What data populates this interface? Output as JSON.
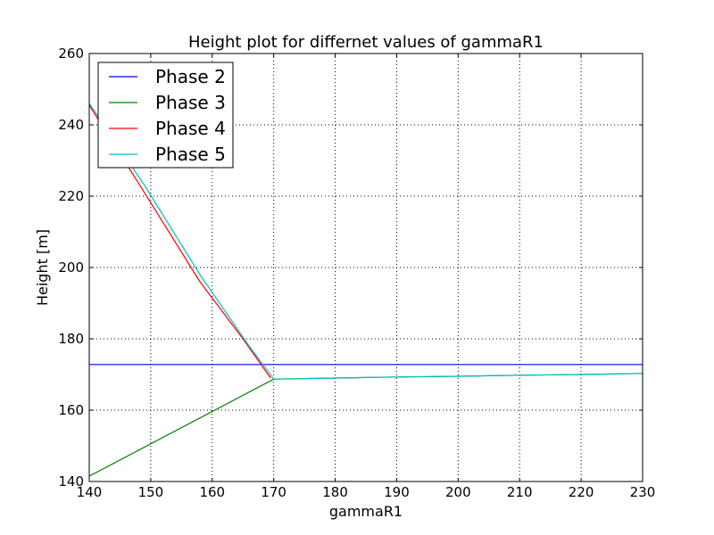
{
  "chart_data": {
    "type": "line",
    "title": "Height plot for differnet values of gammaR1",
    "xlabel": "gammaR1",
    "ylabel": "Height [m]",
    "xlim": [
      140,
      230
    ],
    "ylim": [
      140,
      260
    ],
    "xticks": [
      140,
      150,
      160,
      170,
      180,
      190,
      200,
      210,
      220,
      230
    ],
    "yticks": [
      140,
      160,
      180,
      200,
      220,
      240,
      260
    ],
    "grid": true,
    "legend_position": "top-left",
    "series": [
      {
        "name": "Phase 2",
        "color": "#0000ff",
        "x": [
          140,
          230
        ],
        "y": [
          172.8,
          172.8
        ]
      },
      {
        "name": "Phase 3",
        "color": "#008000",
        "x": [
          140,
          170,
          180,
          190,
          200,
          210,
          220,
          230
        ],
        "y": [
          141.5,
          168.7,
          169.0,
          169.3,
          169.5,
          169.8,
          170.0,
          170.3
        ]
      },
      {
        "name": "Phase 4",
        "color": "#ff0000",
        "x": [
          140,
          148.5,
          158,
          165,
          169.5
        ],
        "y": [
          245.5,
          222.3,
          196.0,
          180.0,
          169.0
        ]
      },
      {
        "name": "Phase 5",
        "color": "#00bfbf",
        "x": [
          140,
          149,
          158,
          166,
          170,
          180,
          190,
          200,
          210,
          220,
          230
        ],
        "y": [
          246.0,
          223.0,
          198.0,
          178.0,
          168.7,
          169.0,
          169.3,
          169.5,
          169.8,
          170.0,
          170.3
        ]
      }
    ]
  }
}
